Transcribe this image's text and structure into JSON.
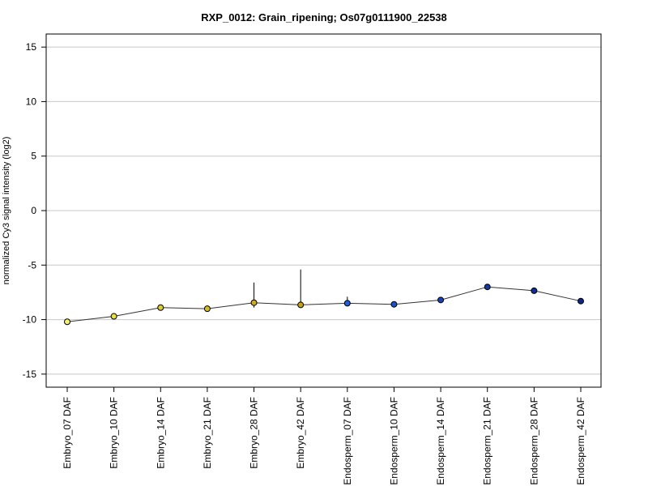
{
  "chart_data": {
    "type": "line",
    "title": "RXP_0012: Grain_ripening; Os07g0111900_22538",
    "xlabel": "",
    "ylabel": "normalized Cy3 signal intensity (log2)",
    "ylim": [
      -16.2,
      16.2
    ],
    "yticks": [
      -15,
      -10,
      -5,
      0,
      5,
      10,
      15
    ],
    "grid": "horizontal",
    "categories": [
      "Embryo_07 DAF",
      "Embryo_10 DAF",
      "Embryo_14 DAF",
      "Embryo_21 DAF",
      "Embryo_28 DAF",
      "Embryo_42 DAF",
      "Endosperm_07 DAF",
      "Endosperm_10 DAF",
      "Endosperm_14 DAF",
      "Endosperm_21 DAF",
      "Endosperm_28 DAF",
      "Endosperm_42 DAF"
    ],
    "values": [
      -10.2,
      -9.7,
      -8.9,
      -9.0,
      -8.45,
      -8.65,
      -8.5,
      -8.6,
      -8.2,
      -7.0,
      -7.35,
      -8.3
    ],
    "error_upper": [
      -10.1,
      -9.6,
      -8.8,
      -8.9,
      -6.6,
      -5.4,
      -7.9,
      -8.5,
      -8.1,
      -6.9,
      -7.2,
      -8.2
    ],
    "error_lower": [
      -10.3,
      -9.8,
      -9.0,
      -9.1,
      -8.9,
      -8.8,
      -8.7,
      -8.7,
      -8.3,
      -7.1,
      -7.6,
      -8.4
    ],
    "point_colors": [
      "#f5f07a",
      "#e8e046",
      "#dccc2e",
      "#d4bc22",
      "#ccae18",
      "#c4a212",
      "#1f5ee0",
      "#1a50cc",
      "#1542b8",
      "#1038a6",
      "#0c2e96",
      "#0a2888"
    ],
    "line_color": "#333333"
  }
}
